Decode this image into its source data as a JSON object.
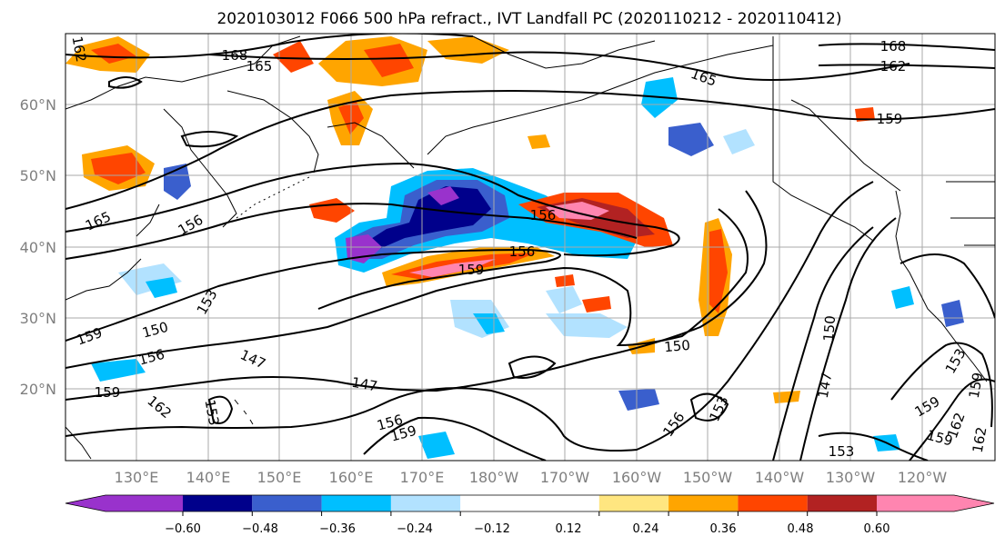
{
  "title": "2020103012 F066 500 hPa refract., IVT Landfall PC (2020110212 - 2020110412)",
  "map": {
    "lat_labels": [
      "60°N",
      "50°N",
      "40°N",
      "30°N",
      "20°N"
    ],
    "lon_labels": [
      "130°E",
      "140°E",
      "150°E",
      "160°E",
      "170°E",
      "180°W",
      "170°W",
      "160°W",
      "150°W",
      "140°W",
      "130°W",
      "120°W"
    ],
    "contour_labels": [
      "168",
      "165",
      "162",
      "168",
      "162",
      "165",
      "159",
      "165",
      "156",
      "156",
      "156",
      "159",
      "153",
      "159",
      "150",
      "156",
      "159",
      "162",
      "147",
      "147",
      "153",
      "150",
      "150",
      "147",
      "156",
      "159",
      "156",
      "153",
      "153",
      "159",
      "153",
      "159",
      "162",
      "159",
      "162"
    ],
    "colors": {
      "land_outline": "#000000",
      "grid": "#a9a9a9",
      "contour": "#000000"
    }
  },
  "colorbar": {
    "tick_labels": [
      "−0.60",
      "−0.48",
      "−0.36",
      "−0.24",
      "−0.12",
      "0.12",
      "0.24",
      "0.36",
      "0.48",
      "0.60"
    ],
    "levels": [
      -0.6,
      -0.48,
      -0.36,
      -0.24,
      -0.12,
      0.12,
      0.24,
      0.36,
      0.48,
      0.6
    ],
    "colors": [
      "#9932cc",
      "#00008b",
      "#3a5fcd",
      "#00bfff",
      "#b2e2ff",
      "#ffffff",
      "#ffe680",
      "#ffa500",
      "#ff4500",
      "#b22222",
      "#ff85b0"
    ]
  }
}
